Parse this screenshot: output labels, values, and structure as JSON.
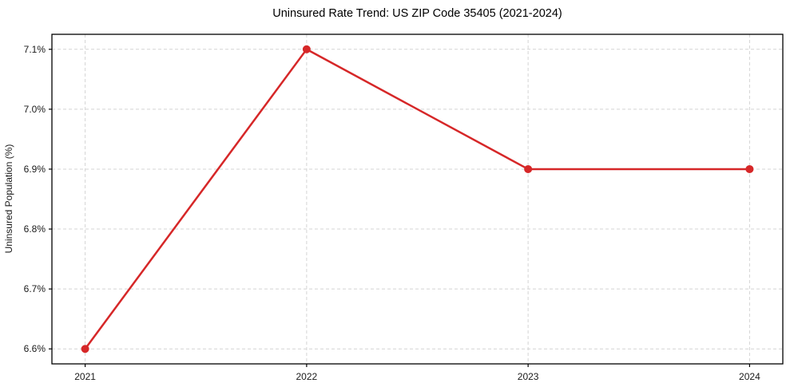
{
  "chart_data": {
    "type": "line",
    "title": "Uninsured Rate Trend: US ZIP Code 35405 (2021-2024)",
    "xlabel": "",
    "ylabel": "Uninsured Population (%)",
    "x": [
      2021,
      2022,
      2023,
      2024
    ],
    "x_tick_labels": [
      "2021",
      "2022",
      "2023",
      "2024"
    ],
    "series": [
      {
        "name": "uninsured-rate",
        "values": [
          6.6,
          7.1,
          6.9,
          6.9
        ]
      }
    ],
    "y_ticks": [
      6.6,
      6.7,
      6.8,
      6.9,
      7.0,
      7.1
    ],
    "y_tick_labels": [
      "6.6%",
      "6.7%",
      "6.8%",
      "6.9%",
      "7.0%",
      "7.1%"
    ],
    "xlim": [
      2020.85,
      2024.15
    ],
    "ylim": [
      6.575,
      7.125
    ],
    "grid": true,
    "legend": "none",
    "style": {
      "line_color": "#d62728",
      "marker": "circle",
      "marker_radius": 5,
      "grid_color": "#d4d4d4",
      "background": "#ffffff",
      "spine_color": "#000000"
    }
  }
}
